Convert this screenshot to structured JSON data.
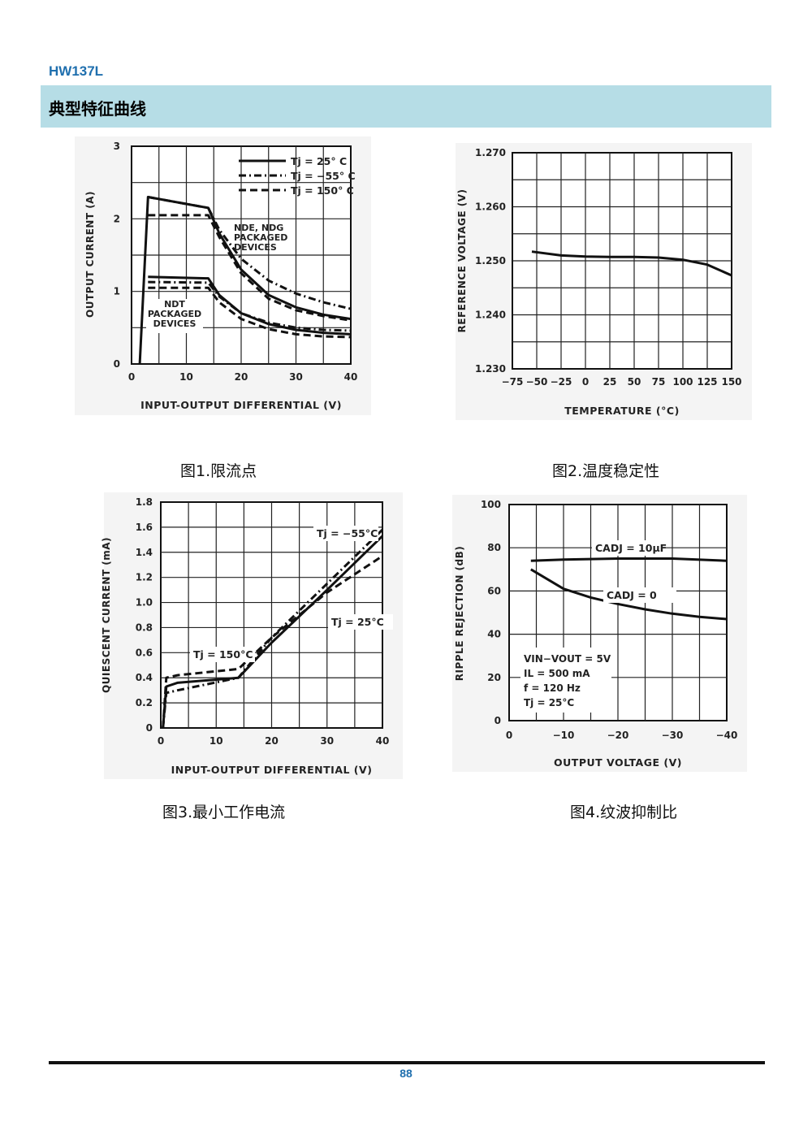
{
  "header": {
    "part_number": "HW137L",
    "section_title": "典型特征曲线"
  },
  "captions": {
    "fig1": "图1.限流点",
    "fig2": "图2.温度稳定性",
    "fig3": "图3.最小工作电流",
    "fig4": "图4.纹波抑制比"
  },
  "footer": {
    "page_number": "88"
  },
  "colors": {
    "accent": "#1f6fae",
    "section_bar": "#b6dde6",
    "chart_bg": "#f4f4f4"
  },
  "chart_data": [
    {
      "type": "line",
      "xlabel": "INPUT-OUTPUT DIFFERENTIAL (V)",
      "ylabel": "OUTPUT CURRENT (A)",
      "xlim": [
        0,
        40
      ],
      "ylim": [
        0,
        3
      ],
      "x_ticks": [
        "0",
        "10",
        "20",
        "30",
        "40"
      ],
      "y_ticks": [
        "0",
        "1",
        "2",
        "3"
      ],
      "grid": true,
      "legend": [
        "Tj = 25° C",
        "Tj = −55° C",
        "Tj = 150° C"
      ],
      "legend_position": "top-right",
      "annotations": [
        "NDE, NDG",
        "PACKAGED",
        "DEVICES",
        "NDT",
        "PACKAGED",
        "DEVICES"
      ],
      "series": [
        {
          "name": "Tj = 25° C",
          "group": "NDE/NDG",
          "style": "solid",
          "points": [
            [
              1.5,
              0
            ],
            [
              3,
              2.3
            ],
            [
              14,
              2.15
            ],
            [
              16,
              1.8
            ],
            [
              20,
              1.3
            ],
            [
              25,
              0.95
            ],
            [
              30,
              0.78
            ],
            [
              35,
              0.68
            ],
            [
              40,
              0.62
            ]
          ]
        },
        {
          "name": "Tj = −55° C",
          "group": "NDE/NDG",
          "style": "dashdot",
          "points": [
            [
              3,
              2.3
            ],
            [
              14,
              2.15
            ],
            [
              16,
              1.85
            ],
            [
              20,
              1.45
            ],
            [
              25,
              1.15
            ],
            [
              30,
              0.97
            ],
            [
              35,
              0.85
            ],
            [
              40,
              0.76
            ]
          ]
        },
        {
          "name": "Tj = 150° C",
          "group": "NDE/NDG",
          "style": "dash",
          "points": [
            [
              3,
              2.05
            ],
            [
              14,
              2.05
            ],
            [
              16,
              1.75
            ],
            [
              20,
              1.25
            ],
            [
              25,
              0.9
            ],
            [
              30,
              0.74
            ],
            [
              35,
              0.66
            ],
            [
              40,
              0.6
            ]
          ]
        },
        {
          "name": "Tj = 25° C",
          "group": "NDT",
          "style": "solid",
          "points": [
            [
              3,
              1.2
            ],
            [
              14,
              1.18
            ],
            [
              16,
              0.95
            ],
            [
              20,
              0.7
            ],
            [
              25,
              0.55
            ],
            [
              30,
              0.47
            ],
            [
              35,
              0.43
            ],
            [
              40,
              0.41
            ]
          ]
        },
        {
          "name": "Tj = −55° C",
          "group": "NDT",
          "style": "dashdot",
          "points": [
            [
              3,
              1.13
            ],
            [
              14,
              1.12
            ],
            [
              16,
              0.93
            ],
            [
              20,
              0.7
            ],
            [
              25,
              0.57
            ],
            [
              30,
              0.5
            ],
            [
              35,
              0.47
            ],
            [
              40,
              0.46
            ]
          ]
        },
        {
          "name": "Tj = 150° C",
          "group": "NDT",
          "style": "dash",
          "points": [
            [
              3,
              1.05
            ],
            [
              14,
              1.05
            ],
            [
              16,
              0.85
            ],
            [
              20,
              0.62
            ],
            [
              25,
              0.48
            ],
            [
              30,
              0.41
            ],
            [
              35,
              0.38
            ],
            [
              40,
              0.37
            ]
          ]
        }
      ]
    },
    {
      "type": "line",
      "xlabel": "TEMPERATURE (°C)",
      "ylabel": "REFERENCE VOLTAGE (V)",
      "xlim": [
        -75,
        150
      ],
      "ylim": [
        1.23,
        1.27
      ],
      "x_ticks": [
        "−75",
        "−50",
        "−25",
        "0",
        "25",
        "50",
        "75",
        "100",
        "125",
        "150"
      ],
      "y_ticks": [
        "1.230",
        "1.240",
        "1.250",
        "1.260",
        "1.270"
      ],
      "grid": true,
      "series": [
        {
          "name": "",
          "style": "solid",
          "points": [
            [
              -55,
              1.2517
            ],
            [
              -25,
              1.251
            ],
            [
              0,
              1.2508
            ],
            [
              25,
              1.2507
            ],
            [
              50,
              1.2507
            ],
            [
              75,
              1.2506
            ],
            [
              100,
              1.2502
            ],
            [
              125,
              1.2493
            ],
            [
              150,
              1.2473
            ]
          ]
        }
      ]
    },
    {
      "type": "line",
      "xlabel": "INPUT-OUTPUT DIFFERENTIAL (V)",
      "ylabel": "QUIESCENT CURRENT (mA)",
      "xlim": [
        0,
        40
      ],
      "ylim": [
        0,
        1.8
      ],
      "x_ticks": [
        "0",
        "10",
        "20",
        "30",
        "40"
      ],
      "y_ticks": [
        "0",
        "0.2",
        "0.4",
        "0.6",
        "0.8",
        "1.0",
        "1.2",
        "1.4",
        "1.6",
        "1.8"
      ],
      "grid": true,
      "annotations": [
        "Tj = −55°C",
        "Tj = 25°C",
        "Tj = 150°C"
      ],
      "series": [
        {
          "name": "Tj = −55°C",
          "style": "dashdot",
          "points": [
            [
              0.4,
              0
            ],
            [
              1,
              0.28
            ],
            [
              3,
              0.3
            ],
            [
              14,
              0.4
            ],
            [
              20,
              0.72
            ],
            [
              30,
              1.15
            ],
            [
              40,
              1.58
            ]
          ]
        },
        {
          "name": "Tj = 25°C",
          "style": "solid",
          "points": [
            [
              0.4,
              0
            ],
            [
              1,
              0.33
            ],
            [
              3,
              0.36
            ],
            [
              14,
              0.4
            ],
            [
              20,
              0.68
            ],
            [
              30,
              1.1
            ],
            [
              40,
              1.53
            ]
          ]
        },
        {
          "name": "Tj = 150°C",
          "style": "dash",
          "points": [
            [
              0.4,
              0
            ],
            [
              1,
              0.4
            ],
            [
              3,
              0.42
            ],
            [
              14,
              0.47
            ],
            [
              20,
              0.72
            ],
            [
              30,
              1.08
            ],
            [
              40,
              1.37
            ]
          ]
        }
      ]
    },
    {
      "type": "line",
      "xlabel": "OUTPUT VOLTAGE (V)",
      "ylabel": "RIPPLE REJECTION (dB)",
      "xlim": [
        0,
        -40
      ],
      "ylim": [
        0,
        100
      ],
      "x_ticks": [
        "0",
        "−10",
        "−20",
        "−30",
        "−40"
      ],
      "y_ticks": [
        "0",
        "20",
        "40",
        "60",
        "80",
        "100"
      ],
      "grid": true,
      "conditions": [
        "VIN−VOUT = 5V",
        "IL = 500 mA",
        "f = 120 Hz",
        "Tj = 25°C"
      ],
      "series": [
        {
          "name": "CADJ = 10μF",
          "style": "solid",
          "points": [
            [
              -4,
              74
            ],
            [
              -10,
              74.5
            ],
            [
              -20,
              75
            ],
            [
              -30,
              75
            ],
            [
              -40,
              74
            ]
          ]
        },
        {
          "name": "CADJ = 0",
          "style": "solid",
          "points": [
            [
              -4,
              70
            ],
            [
              -10,
              61
            ],
            [
              -15,
              57
            ],
            [
              -20,
              54
            ],
            [
              -25,
              51.5
            ],
            [
              -30,
              49.5
            ],
            [
              -35,
              48
            ],
            [
              -40,
              47
            ]
          ]
        }
      ]
    }
  ]
}
